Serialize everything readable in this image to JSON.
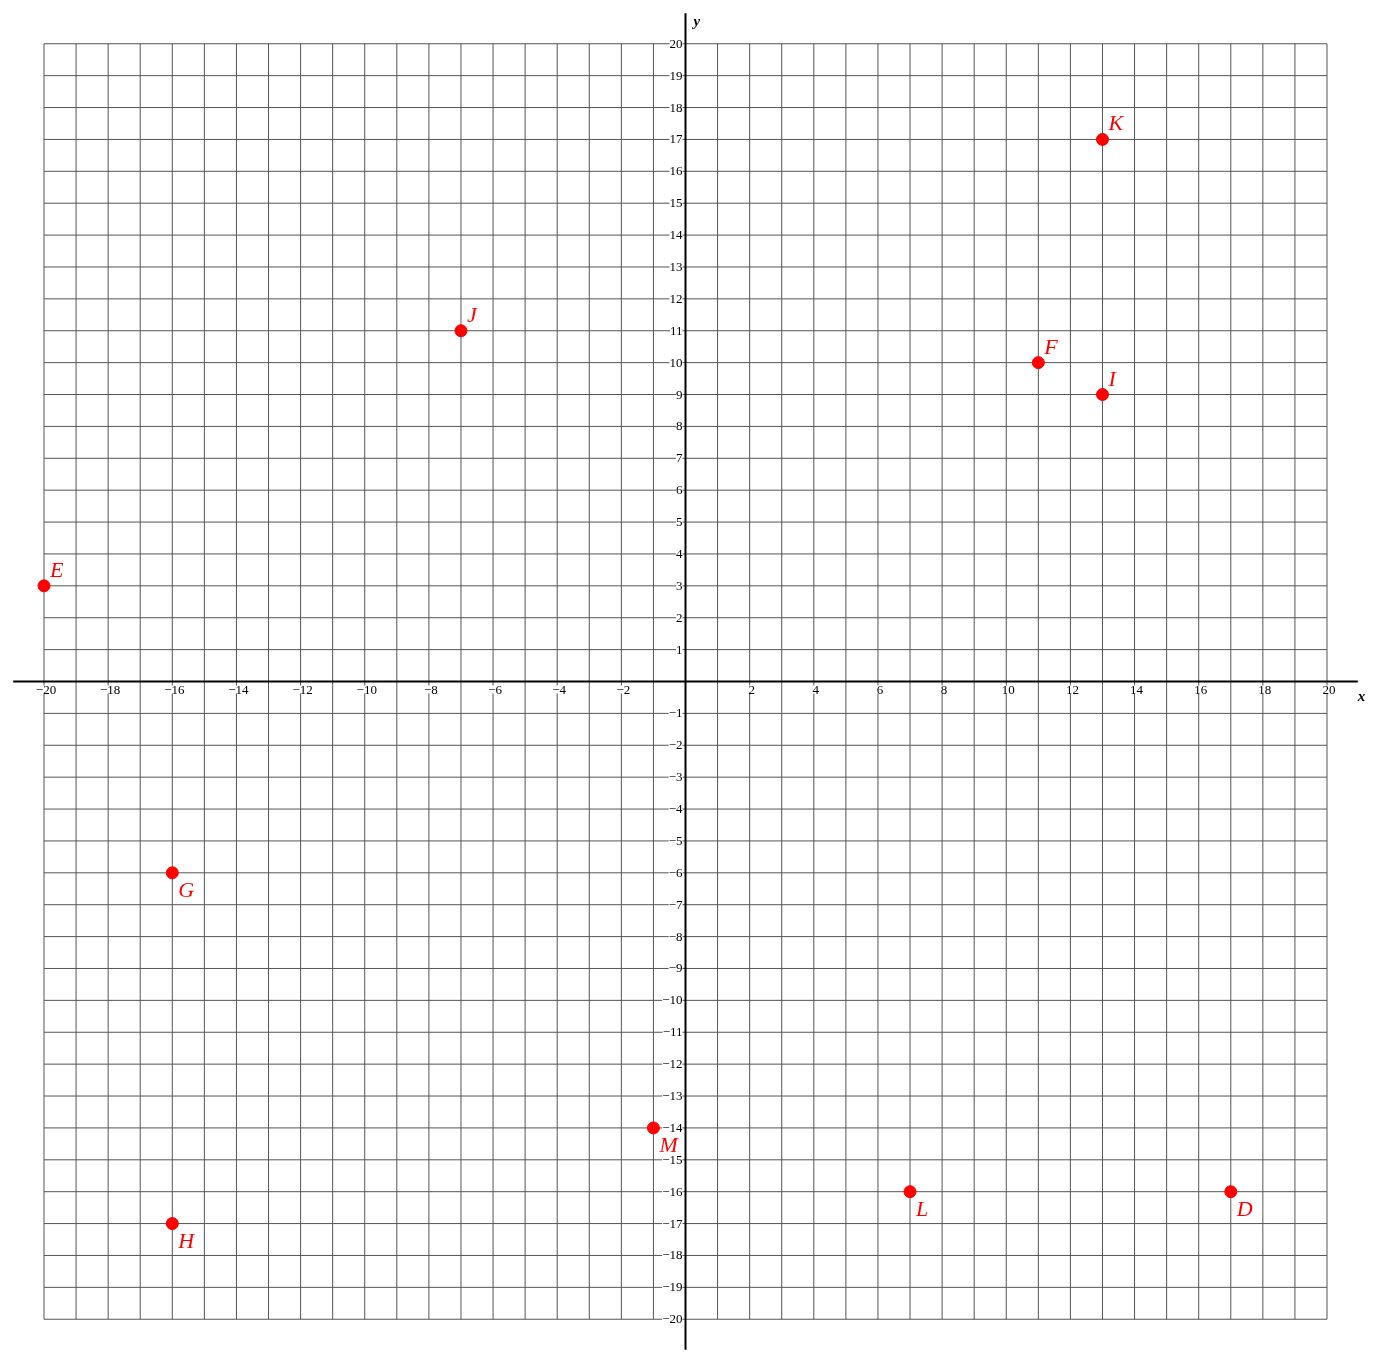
{
  "chart_data": {
    "type": "scatter",
    "xlabel": "x",
    "ylabel": "y",
    "x": [
      -20,
      -7,
      11,
      13,
      13,
      -16,
      -16,
      -1,
      7,
      17
    ],
    "values": [
      3,
      11,
      10,
      9,
      17,
      -6,
      -17,
      -14,
      -16,
      -16
    ],
    "color": "#ff0000",
    "marker": "circle",
    "grid": true,
    "xlim": [
      -20,
      20
    ],
    "ylim": [
      -20,
      20
    ],
    "xticks": [
      -20,
      {
        "value": -19,
        "label": null
      },
      -18,
      {
        "value": -17,
        "label": null
      },
      -16,
      {
        "value": -15,
        "label": null
      },
      -14,
      {
        "value": -13,
        "label": null
      },
      -12,
      {
        "value": -11,
        "label": null
      },
      -10,
      {
        "value": -9,
        "label": null
      },
      -8,
      {
        "value": -7,
        "label": null
      },
      -6,
      {
        "value": -5,
        "label": null
      },
      -4,
      {
        "value": -3,
        "label": null
      },
      -2,
      {
        "value": -1,
        "label": null
      },
      {
        "value": 0,
        "label": null
      },
      {
        "value": 1,
        "label": null
      },
      2,
      {
        "value": 3,
        "label": null
      },
      4,
      {
        "value": 5,
        "label": null
      },
      6,
      {
        "value": 7,
        "label": null
      },
      8,
      {
        "value": 9,
        "label": null
      },
      10,
      {
        "value": 11,
        "label": null
      },
      12,
      {
        "value": 13,
        "label": null
      },
      14,
      {
        "value": 15,
        "label": null
      },
      16,
      {
        "value": 17,
        "label": null
      },
      18,
      {
        "value": 19,
        "label": null
      },
      20
    ],
    "yticks": [
      -20,
      -19,
      -18,
      -17,
      -16,
      -15,
      -14,
      -13,
      -12,
      -11,
      -10,
      -9,
      -8,
      -7,
      -6,
      -5,
      -4,
      -3,
      -2,
      -1,
      {
        "value": 0,
        "label": null
      },
      1,
      2,
      3,
      4,
      5,
      6,
      7,
      8,
      9,
      10,
      11,
      12,
      13,
      14,
      15,
      16,
      17,
      18,
      19,
      20
    ],
    "annotations": [
      {
        "text": "E",
        "x": -20,
        "y": 3
      },
      {
        "text": "J",
        "x": -7,
        "y": 11
      },
      {
        "text": "F",
        "x": 11,
        "y": 10
      },
      {
        "text": "I",
        "x": 13,
        "y": 9
      },
      {
        "text": "K",
        "x": 13,
        "y": 17
      },
      {
        "text": "G",
        "x": -16,
        "y": -6
      },
      {
        "text": "H",
        "x": -16,
        "y": -17
      },
      {
        "text": "M",
        "x": -1,
        "y": -14
      },
      {
        "text": "L",
        "x": 7,
        "y": -16
      },
      {
        "text": "D",
        "x": 17,
        "y": -16
      }
    ]
  }
}
